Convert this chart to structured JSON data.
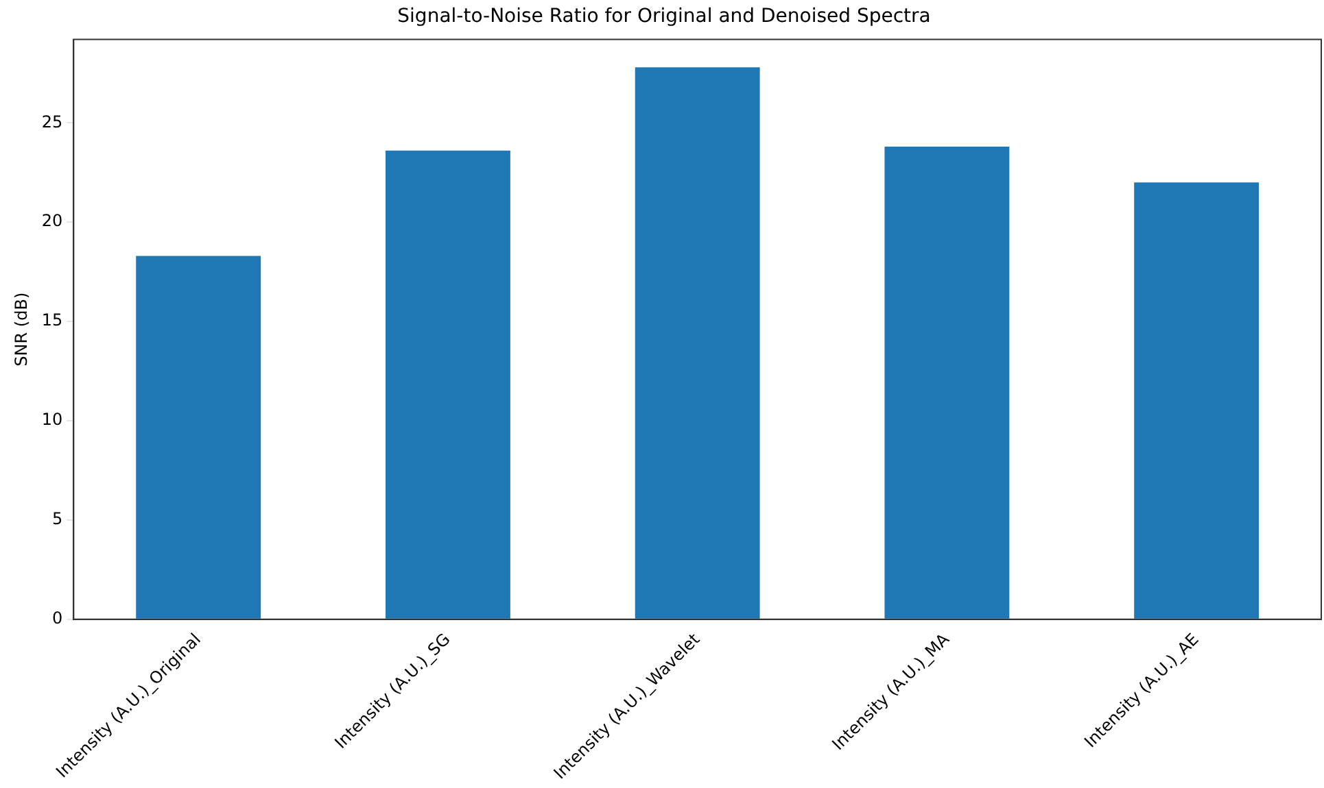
{
  "chart_data": {
    "type": "bar",
    "title": "Signal-to-Noise Ratio for Original and Denoised Spectra",
    "ylabel": "SNR (dB)",
    "categories": [
      "Intensity (A.U.)_Original",
      "Intensity (A.U.)_SG",
      "Intensity (A.U.)_Wavelet",
      "Intensity (A.U.)_MA",
      "Intensity (A.U.)_AE"
    ],
    "values": [
      18.3,
      23.6,
      27.8,
      23.8,
      22.0
    ],
    "color": "#1f77b4",
    "ylim": [
      0,
      29.2
    ],
    "yticks": [
      0,
      5,
      10,
      15,
      20,
      25
    ],
    "grid": false,
    "legend": false
  }
}
